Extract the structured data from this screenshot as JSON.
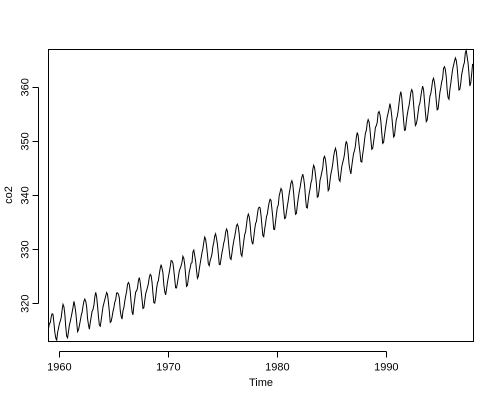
{
  "chart_data": {
    "type": "line",
    "title": "",
    "xlabel": "Time",
    "ylabel": "co2",
    "xlim": [
      1959,
      1998
    ],
    "ylim": [
      313,
      367
    ],
    "x_ticks": [
      1960,
      1970,
      1980,
      1990
    ],
    "y_ticks": [
      320,
      330,
      340,
      350,
      360
    ],
    "x_tick_labels": [
      "1960",
      "1970",
      "1980",
      "1990"
    ],
    "y_tick_labels": [
      "320",
      "330",
      "340",
      "350",
      "360"
    ],
    "grid": false,
    "legend": "none",
    "line_color": "#000000",
    "x_start": 1959.0,
    "x_step": 0.0833333333,
    "series": [
      {
        "values": [
          315.42,
          316.31,
          316.5,
          317.56,
          318.13,
          318.0,
          316.39,
          314.65,
          313.68,
          313.18,
          314.66,
          315.43,
          316.27,
          316.81,
          317.42,
          318.87,
          319.87,
          319.43,
          318.01,
          315.74,
          314.0,
          313.68,
          314.84,
          316.03,
          316.73,
          317.54,
          318.38,
          319.31,
          320.42,
          319.61,
          318.42,
          316.63,
          314.83,
          315.16,
          315.94,
          316.85,
          317.78,
          318.4,
          319.53,
          320.42,
          320.85,
          320.45,
          319.45,
          317.25,
          316.11,
          315.27,
          316.53,
          317.53,
          318.58,
          318.92,
          319.7,
          321.22,
          322.08,
          321.31,
          319.58,
          317.61,
          316.05,
          315.83,
          316.91,
          318.2,
          319.41,
          320.07,
          320.74,
          321.4,
          322.06,
          321.73,
          320.27,
          318.54,
          316.54,
          316.71,
          317.53,
          318.55,
          319.27,
          320.28,
          320.73,
          321.97,
          322.0,
          321.71,
          321.05,
          318.71,
          317.66,
          317.14,
          318.7,
          319.25,
          320.46,
          321.43,
          322.23,
          323.54,
          323.91,
          323.59,
          322.24,
          320.2,
          318.48,
          317.94,
          319.63,
          320.87,
          322.17,
          322.34,
          322.88,
          324.25,
          324.83,
          323.93,
          322.38,
          320.76,
          319.1,
          319.24,
          320.56,
          321.8,
          322.4,
          322.99,
          323.73,
          324.86,
          325.4,
          325.2,
          323.98,
          321.95,
          320.18,
          320.09,
          321.16,
          322.74,
          323.83,
          324.26,
          325.47,
          326.5,
          327.21,
          326.54,
          325.72,
          323.5,
          322.22,
          321.62,
          322.69,
          323.95,
          324.89,
          325.82,
          326.77,
          327.97,
          327.91,
          327.5,
          326.18,
          324.53,
          322.93,
          322.9,
          323.85,
          324.96,
          326.01,
          326.51,
          327.01,
          327.62,
          328.76,
          328.4,
          327.2,
          325.27,
          323.2,
          323.4,
          324.63,
          325.85,
          326.6,
          327.47,
          327.58,
          329.56,
          329.9,
          328.92,
          327.88,
          326.16,
          324.68,
          325.04,
          326.34,
          327.39,
          328.37,
          329.4,
          330.14,
          331.33,
          332.31,
          331.9,
          330.7,
          329.15,
          327.35,
          327.02,
          327.99,
          328.48,
          329.18,
          330.55,
          331.32,
          332.48,
          332.92,
          332.08,
          331.01,
          329.23,
          327.27,
          327.21,
          328.29,
          329.41,
          330.23,
          331.25,
          331.87,
          333.14,
          333.8,
          333.43,
          331.73,
          329.9,
          328.4,
          328.17,
          329.32,
          330.59,
          331.58,
          332.39,
          333.33,
          334.41,
          334.71,
          334.17,
          332.89,
          330.77,
          329.14,
          328.78,
          330.14,
          331.52,
          332.75,
          333.24,
          334.53,
          335.9,
          336.57,
          336.1,
          334.76,
          332.59,
          331.42,
          330.98,
          332.24,
          333.68,
          334.8,
          335.22,
          336.47,
          337.59,
          337.84,
          337.72,
          336.37,
          334.51,
          332.6,
          332.38,
          333.75,
          334.78,
          336.05,
          336.59,
          337.79,
          338.71,
          339.3,
          339.12,
          337.56,
          335.92,
          333.75,
          333.7,
          335.12,
          336.56,
          337.84,
          338.19,
          339.91,
          340.6,
          341.29,
          341.0,
          339.39,
          337.43,
          335.72,
          335.84,
          336.93,
          338.04,
          339.06,
          340.3,
          341.21,
          342.33,
          342.74,
          342.08,
          340.32,
          338.26,
          336.52,
          336.68,
          338.19,
          339.44,
          340.57,
          341.44,
          342.53,
          343.39,
          343.96,
          343.18,
          341.88,
          339.65,
          337.81,
          337.69,
          339.09,
          340.32,
          341.2,
          342.35,
          342.93,
          344.77,
          345.58,
          345.14,
          343.81,
          342.21,
          339.69,
          339.82,
          340.98,
          342.82,
          343.52,
          344.33,
          345.11,
          346.88,
          347.25,
          346.62,
          345.22,
          343.11,
          340.9,
          341.18,
          342.8,
          344.04,
          344.79,
          345.82,
          347.25,
          348.17,
          348.74,
          348.07,
          346.38,
          344.51,
          342.92,
          342.62,
          344.06,
          345.38,
          346.11,
          346.78,
          347.68,
          349.37,
          350.03,
          349.37,
          347.76,
          345.73,
          344.68,
          343.99,
          345.48,
          346.72,
          347.84,
          348.29,
          349.23,
          350.8,
          351.66,
          351.07,
          349.33,
          347.92,
          346.27,
          346.18,
          347.64,
          348.78,
          350.25,
          351.54,
          352.05,
          353.41,
          354.04,
          353.62,
          352.22,
          350.27,
          348.55,
          348.72,
          349.91,
          351.18,
          352.6,
          352.92,
          353.53,
          355.26,
          355.52,
          354.97,
          353.75,
          351.52,
          349.64,
          349.83,
          351.14,
          352.37,
          353.5,
          354.55,
          355.23,
          356.04,
          357.0,
          356.07,
          354.67,
          352.76,
          350.82,
          351.04,
          352.69,
          354.07,
          354.59,
          355.63,
          357.03,
          358.48,
          359.22,
          358.12,
          356.06,
          353.92,
          352.05,
          352.11,
          353.64,
          354.89,
          355.88,
          356.63,
          357.72,
          359.07,
          359.58,
          359.17,
          356.94,
          354.92,
          352.94,
          353.23,
          354.09,
          355.33,
          356.63,
          357.1,
          358.32,
          359.41,
          360.23,
          359.55,
          357.53,
          355.48,
          353.67,
          353.95,
          355.3,
          356.78,
          358.34,
          358.89,
          359.95,
          361.25,
          361.67,
          360.94,
          359.55,
          357.49,
          355.84,
          356.0,
          357.59,
          359.05,
          359.98,
          361.03,
          361.66,
          363.48,
          363.82,
          363.3,
          361.94,
          359.5,
          358.11,
          357.8,
          359.61,
          360.74,
          362.09,
          363.29,
          364.06,
          364.76,
          365.45,
          365.01,
          363.7,
          361.54,
          359.51,
          359.65,
          360.8,
          362.38,
          363.23,
          364.06,
          364.61,
          366.4,
          366.84,
          365.68,
          364.52,
          362.57,
          360.24,
          360.83,
          362.49,
          364.34
        ]
      }
    ]
  }
}
